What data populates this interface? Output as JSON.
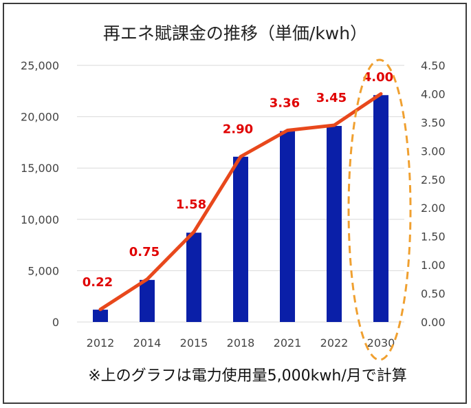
{
  "chart_data": {
    "type": "bar",
    "title": "再エネ賦課金の推移（単価/kwh）",
    "categories": [
      "2012",
      "2014",
      "2015",
      "2018",
      "2021",
      "2022",
      "2030"
    ],
    "series": [
      {
        "axis": "left",
        "type": "bar",
        "values": [
          1200,
          4100,
          8700,
          16100,
          18600,
          19100,
          22100
        ]
      },
      {
        "axis": "right",
        "type": "line",
        "values": [
          0.22,
          0.75,
          1.58,
          2.9,
          3.36,
          3.45,
          4.0
        ]
      }
    ],
    "y_left": {
      "range": [
        0,
        25000
      ],
      "ticks": [
        "0",
        "5,000",
        "10,000",
        "15,000",
        "20,000",
        "25,000"
      ]
    },
    "y_right": {
      "range": [
        0,
        4.5
      ],
      "ticks": [
        "0.00",
        "0.50",
        "1.00",
        "1.50",
        "2.00",
        "2.50",
        "3.00",
        "3.50",
        "4.00",
        "4.50"
      ]
    },
    "data_labels": [
      "0.22",
      "0.75",
      "1.58",
      "2.90",
      "3.36",
      "3.45",
      "4.00"
    ],
    "gridlines": true,
    "highlight_category": "2030",
    "note": "※上のグラフは電力使用量5,000kwh/月で計算",
    "colors": {
      "bar": "#0a1fa8",
      "line": "#e8481c",
      "label": "#e00000",
      "highlight": "#f0a030",
      "grid": "#d9d9d9"
    }
  }
}
